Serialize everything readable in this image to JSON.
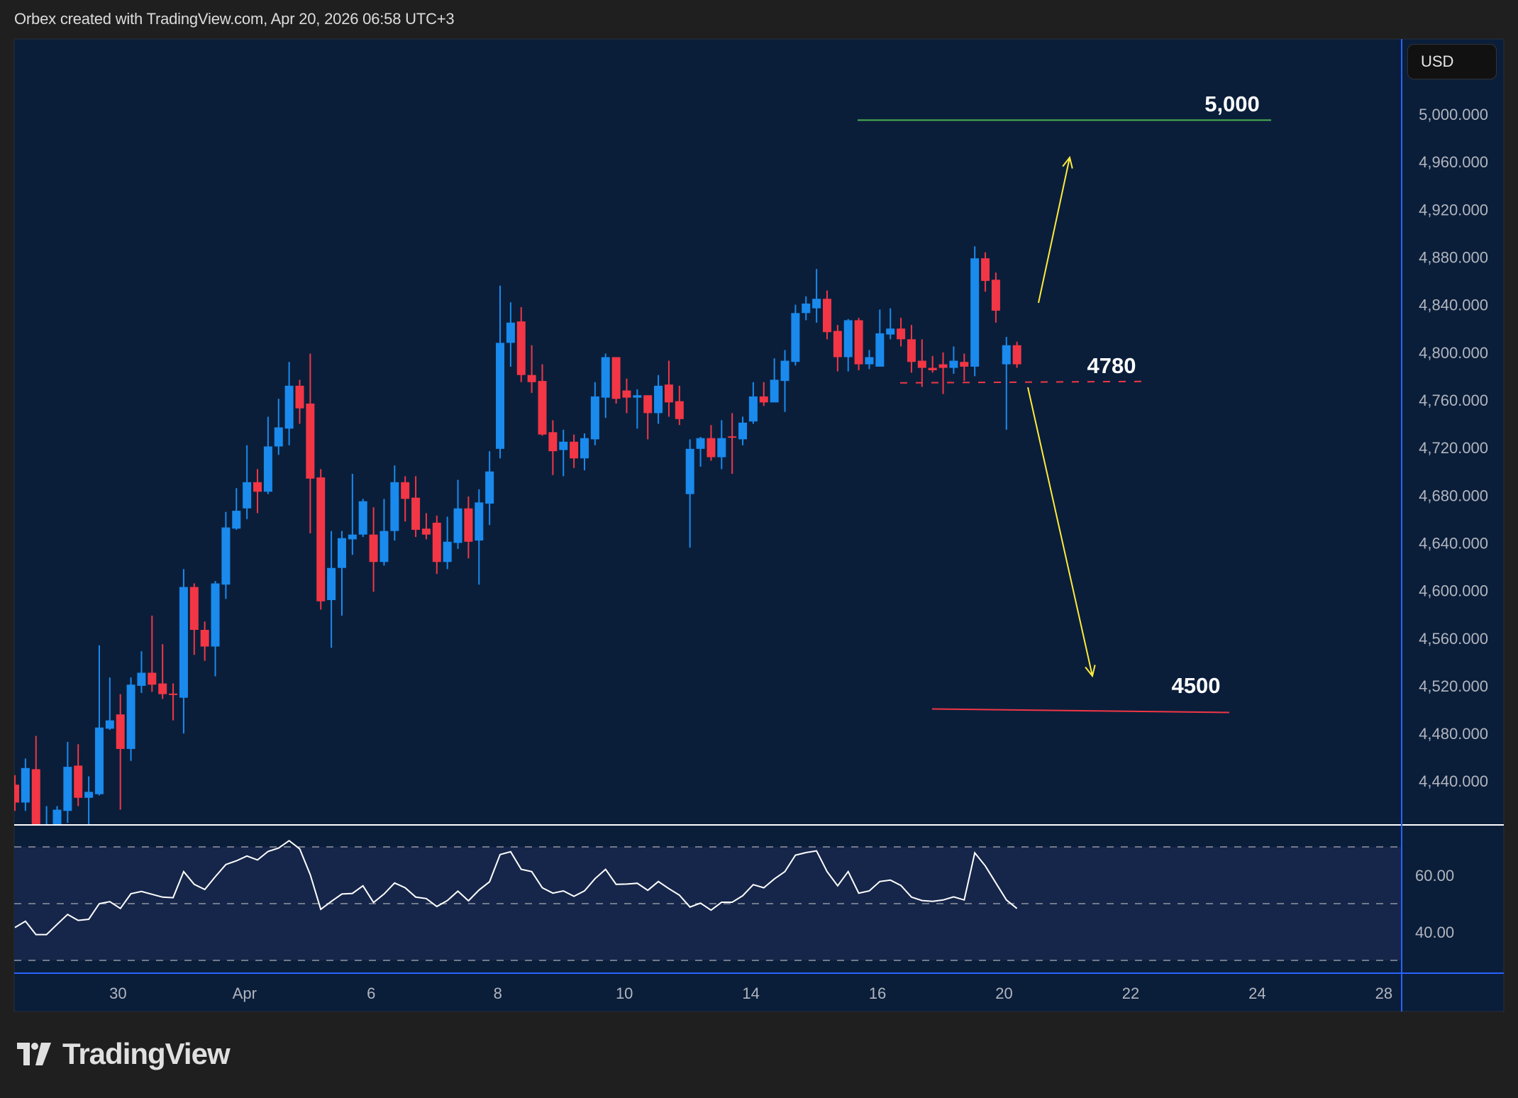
{
  "header": {
    "text": "Orbex created with TradingView.com, Apr 20, 2026 06:58 UTC+3"
  },
  "currency_button": {
    "label": "USD"
  },
  "logo": {
    "text": "TradingView"
  },
  "colors": {
    "background": "#1f1f1f",
    "pane": "#0a1e3a",
    "rsi_band": "#16264a",
    "up": "#1a8aed",
    "down": "#f23645",
    "axis_border": "#2962ff",
    "target_up": "#4caf50",
    "target_down": "#f23645",
    "arrow": "#ffeb3b",
    "rsi_line": "#ffffff"
  },
  "annotations": {
    "target_up": {
      "label": "5,000",
      "price": 4995
    },
    "pivot": {
      "label": "4780",
      "price": 4775
    },
    "target_down": {
      "label": "4500",
      "price": 4500
    }
  },
  "chart_data": [
    {
      "type": "candlestick",
      "title": "",
      "price_axis_ticks": [
        "5,000.000",
        "4,960.000",
        "4,920.000",
        "4,880.000",
        "4,840.000",
        "4,800.000",
        "4,760.000",
        "4,720.000",
        "4,680.000",
        "4,640.000",
        "4,600.000",
        "4,560.000",
        "4,520.000",
        "4,480.000",
        "4,440.000"
      ],
      "price_axis_values": [
        5000,
        4960,
        4920,
        4880,
        4840,
        4800,
        4760,
        4720,
        4680,
        4640,
        4600,
        4560,
        4520,
        4480,
        4440
      ],
      "ylim": [
        4403,
        5063
      ],
      "grid": false,
      "time_axis_ticks": [
        "30",
        "Apr",
        "6",
        "8",
        "10",
        "14",
        "16",
        "20",
        "22",
        "24",
        "28"
      ],
      "candles_ohlc": [
        [
          4437,
          4445,
          4415,
          4422
        ],
        [
          4422,
          4459,
          4415,
          4451
        ],
        [
          4450,
          4478,
          4390,
          4400
        ],
        [
          4393,
          4419,
          4385,
          4398
        ],
        [
          4400,
          4419,
          4395,
          4416
        ],
        [
          4415,
          4473,
          4405,
          4452
        ],
        [
          4453,
          4471,
          4419,
          4426
        ],
        [
          4426,
          4444,
          4403,
          4431
        ],
        [
          4429,
          4554,
          4428,
          4485
        ],
        [
          4484,
          4527,
          4483,
          4491
        ],
        [
          4496,
          4513,
          4416,
          4467
        ],
        [
          4467,
          4527,
          4457,
          4521
        ],
        [
          4520,
          4549,
          4514,
          4531
        ],
        [
          4531,
          4579,
          4515,
          4521
        ],
        [
          4522,
          4555,
          4509,
          4513
        ],
        [
          4513.5,
          4522,
          4491,
          4513
        ],
        [
          4510,
          4618,
          4480,
          4603
        ],
        [
          4603,
          4606,
          4546,
          4567
        ],
        [
          4567,
          4574,
          4541,
          4553
        ],
        [
          4553,
          4608,
          4528,
          4606
        ],
        [
          4605,
          4666,
          4593,
          4653
        ],
        [
          4652,
          4686,
          4651,
          4667
        ],
        [
          4669,
          4722,
          4660,
          4691
        ],
        [
          4691,
          4702,
          4665,
          4683
        ],
        [
          4683,
          4746,
          4681,
          4721
        ],
        [
          4721,
          4761,
          4714,
          4737
        ],
        [
          4736,
          4792,
          4722,
          4772
        ],
        [
          4772,
          4777,
          4740,
          4753
        ],
        [
          4757,
          4799,
          4648,
          4694
        ],
        [
          4695,
          4702,
          4584,
          4591
        ],
        [
          4592,
          4650,
          4552,
          4619
        ],
        [
          4619,
          4650,
          4579,
          4644
        ],
        [
          4643,
          4698,
          4630,
          4647
        ],
        [
          4647,
          4677,
          4645,
          4675
        ],
        [
          4647,
          4670,
          4599,
          4624
        ],
        [
          4624,
          4677,
          4621,
          4650
        ],
        [
          4650,
          4705,
          4642,
          4691
        ],
        [
          4691,
          4696,
          4658,
          4677
        ],
        [
          4678,
          4696,
          4645,
          4651
        ],
        [
          4652,
          4665,
          4643,
          4647
        ],
        [
          4657,
          4663,
          4614,
          4624
        ],
        [
          4624,
          4662,
          4618,
          4641
        ],
        [
          4640,
          4693,
          4635,
          4669
        ],
        [
          4669,
          4679,
          4627,
          4641
        ],
        [
          4642,
          4685,
          4605,
          4674
        ],
        [
          4673,
          4717,
          4655,
          4700
        ],
        [
          4719,
          4856,
          4711,
          4808
        ],
        [
          4808,
          4842,
          4788,
          4825
        ],
        [
          4826,
          4838,
          4775,
          4781
        ],
        [
          4781,
          4806,
          4766,
          4775
        ],
        [
          4776,
          4790,
          4730,
          4731
        ],
        [
          4733,
          4743,
          4697,
          4717
        ],
        [
          4718,
          4735,
          4696,
          4725
        ],
        [
          4725,
          4731,
          4703,
          4711
        ],
        [
          4711,
          4732,
          4701,
          4728
        ],
        [
          4727,
          4775,
          4722,
          4763
        ],
        [
          4762,
          4799,
          4745,
          4796
        ],
        [
          4796,
          4796,
          4757,
          4761
        ],
        [
          4768,
          4778,
          4749,
          4762
        ],
        [
          4762,
          4769,
          4736,
          4764
        ],
        [
          4764,
          4764,
          4727,
          4749
        ],
        [
          4749,
          4781,
          4740,
          4772
        ],
        [
          4773,
          4793,
          4746,
          4758
        ],
        [
          4759,
          4772,
          4739,
          4744
        ],
        [
          4681,
          4727,
          4636,
          4719
        ],
        [
          4719,
          4729,
          4704,
          4728
        ],
        [
          4728,
          4739,
          4709,
          4712
        ],
        [
          4712,
          4743,
          4702,
          4728
        ],
        [
          4729.5,
          4749,
          4698,
          4729
        ],
        [
          4727,
          4746,
          4722,
          4741
        ],
        [
          4742,
          4775,
          4740,
          4763
        ],
        [
          4763,
          4775,
          4755,
          4758
        ],
        [
          4758,
          4795,
          4758,
          4777
        ],
        [
          4776,
          4802,
          4750,
          4793
        ],
        [
          4792,
          4840,
          4789,
          4833
        ],
        [
          4833,
          4847,
          4827,
          4841
        ],
        [
          4837,
          4870,
          4825,
          4845
        ],
        [
          4845,
          4852,
          4811,
          4817
        ],
        [
          4818,
          4823,
          4784,
          4796
        ],
        [
          4796,
          4828,
          4784,
          4827
        ],
        [
          4827,
          4829,
          4785,
          4790
        ],
        [
          4790,
          4802,
          4786,
          4796
        ],
        [
          4788,
          4836,
          4788,
          4816
        ],
        [
          4815,
          4837,
          4811,
          4820
        ],
        [
          4820,
          4829,
          4805,
          4811
        ],
        [
          4811,
          4823,
          4783,
          4792
        ],
        [
          4793,
          4811,
          4771,
          4787
        ],
        [
          4787,
          4797,
          4783,
          4785
        ],
        [
          4790,
          4800,
          4765,
          4787
        ],
        [
          4787,
          4805,
          4782,
          4793
        ],
        [
          4792,
          4799,
          4776,
          4788
        ],
        [
          4788,
          4889,
          4780,
          4879
        ],
        [
          4879,
          4884,
          4851,
          4860
        ],
        [
          4861,
          4867,
          4825,
          4835
        ],
        [
          4790,
          4813,
          4735,
          4806
        ],
        [
          4806,
          4809,
          4787,
          4790
        ]
      ]
    },
    {
      "type": "line",
      "title": "",
      "axis_ticks": [
        "60.00",
        "40.00"
      ],
      "axis_values": [
        60,
        40
      ],
      "band": [
        30,
        70
      ],
      "levels": [
        70,
        50,
        30
      ],
      "series": [
        {
          "values": [
            41.6,
            43.8,
            39.1,
            39.1,
            42.7,
            46.2,
            44.1,
            44.5,
            50.0,
            50.7,
            48.3,
            53.5,
            54.3,
            53.3,
            52.3,
            52.1,
            61.3,
            56.8,
            55.0,
            59.5,
            63.8,
            65.1,
            66.8,
            65.4,
            68.4,
            69.6,
            72.2,
            69.3,
            60.2,
            48.0,
            50.8,
            53.4,
            53.6,
            56.3,
            50.4,
            53.4,
            57.3,
            55.6,
            52.3,
            51.8,
            49.0,
            51.1,
            54.4,
            51.0,
            54.8,
            57.7,
            67.3,
            68.3,
            62.1,
            61.3,
            55.6,
            53.7,
            54.5,
            52.6,
            54.5,
            58.8,
            62.1,
            56.8,
            56.9,
            57.2,
            54.7,
            57.8,
            55.3,
            53.0,
            48.8,
            50.2,
            47.7,
            50.5,
            50.5,
            52.8,
            56.7,
            55.6,
            58.7,
            61.3,
            67.1,
            68.0,
            68.6,
            61.3,
            56.3,
            61.3,
            53.7,
            54.5,
            57.8,
            58.3,
            56.4,
            52.3,
            51.1,
            50.8,
            51.3,
            52.4,
            51.3,
            67.9,
            63.3,
            57.3,
            51.3,
            48.3
          ]
        }
      ]
    }
  ]
}
